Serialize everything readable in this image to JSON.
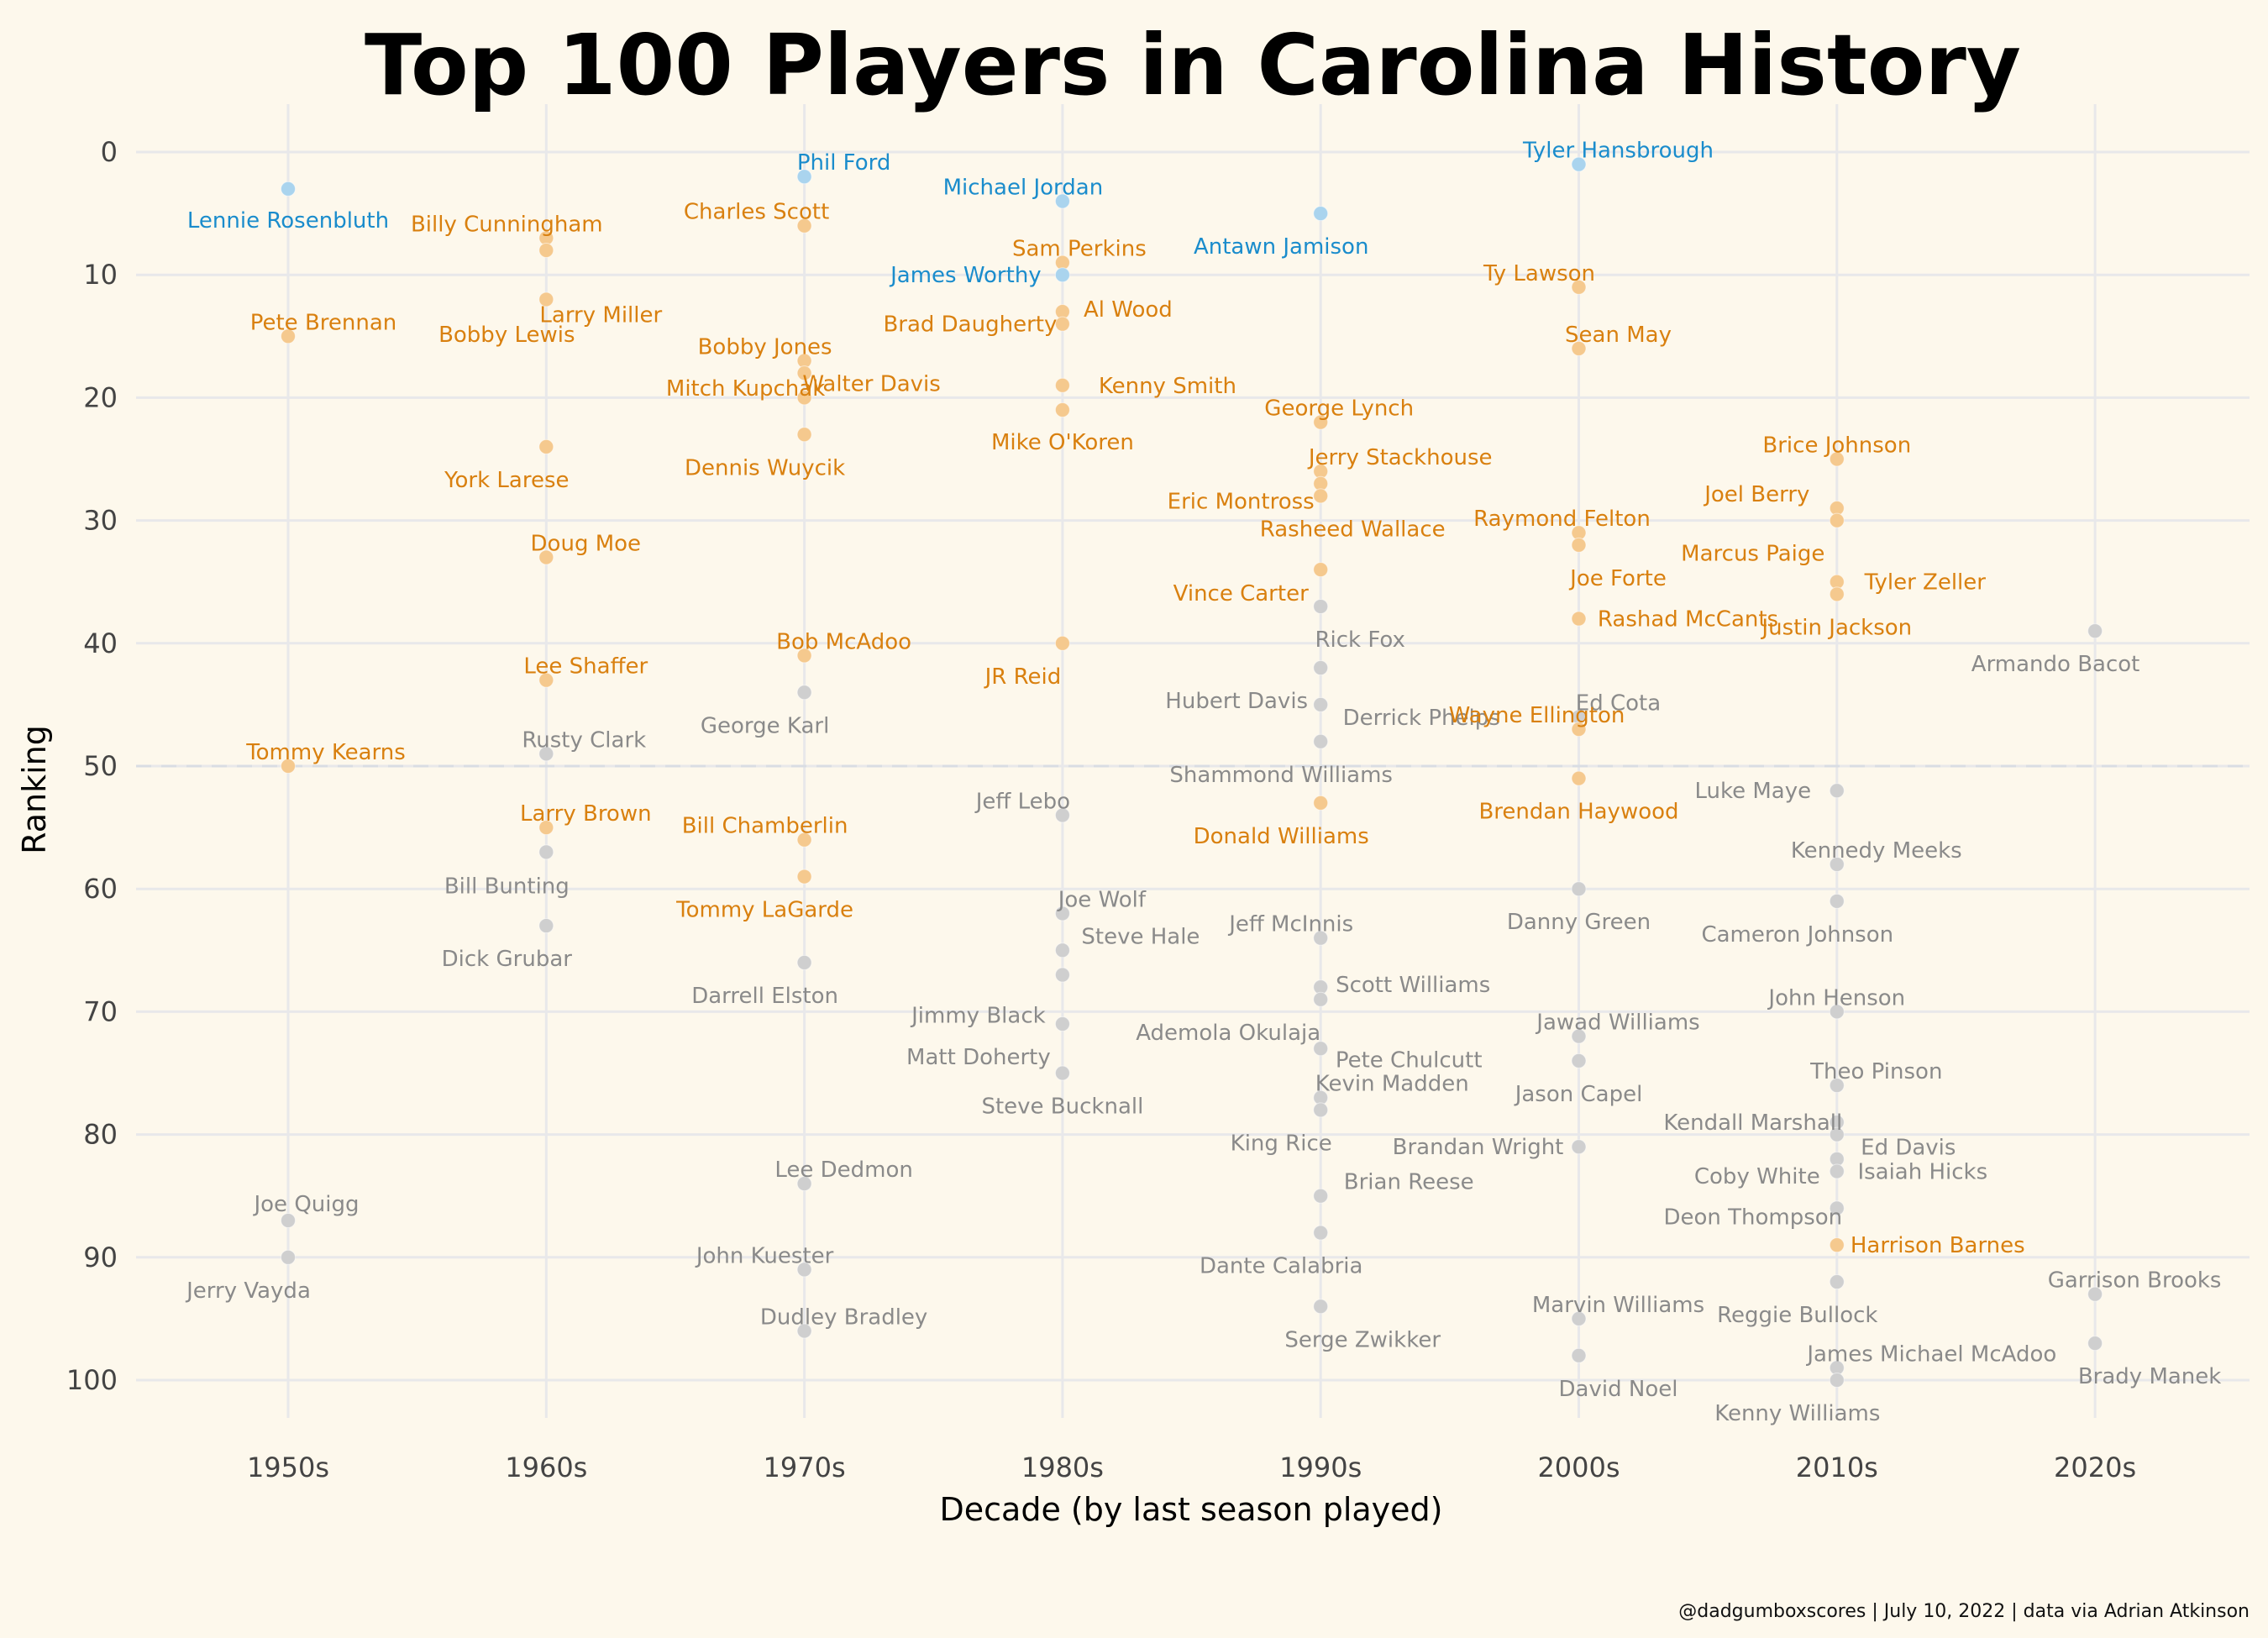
{
  "chart_data": {
    "type": "scatter",
    "title": "Top 100 Players in Carolina History",
    "xlabel": "Decade (by last season played)",
    "ylabel": "Ranking",
    "caption": "@dadgumboxscores | July 10, 2022 | data via Adrian Atkinson",
    "x_categories": [
      "1950s",
      "1960s",
      "1970s",
      "1980s",
      "1990s",
      "2000s",
      "2010s",
      "2020s"
    ],
    "y_ticks": [
      0,
      10,
      20,
      30,
      40,
      50,
      60,
      70,
      80,
      90,
      100
    ],
    "ylim": [
      0,
      100
    ],
    "y_reversed": true,
    "reference_line": 50,
    "grid": true,
    "colors": {
      "blue": "#1a8ccc",
      "orange": "#d9800f",
      "gray": "#8a8a8a",
      "blue_point": "#aad4ee",
      "orange_point": "#f5c98e",
      "gray_point": "#cfcfcf"
    },
    "players": [
      {
        "name": "Lennie Rosenbluth",
        "decade": "1950s",
        "rank": 3,
        "tier": "blue"
      },
      {
        "name": "Pete Brennan",
        "decade": "1950s",
        "rank": 15,
        "tier": "orange"
      },
      {
        "name": "Tommy Kearns",
        "decade": "1950s",
        "rank": 50,
        "tier": "orange"
      },
      {
        "name": "Joe Quigg",
        "decade": "1950s",
        "rank": 87,
        "tier": "gray"
      },
      {
        "name": "Jerry Vayda",
        "decade": "1950s",
        "rank": 90,
        "tier": "gray"
      },
      {
        "name": "Billy Cunningham",
        "decade": "1960s",
        "rank": 7,
        "tier": "orange"
      },
      {
        "name": "Bobby Lewis",
        "decade": "1960s",
        "rank": 8,
        "tier": "orange"
      },
      {
        "name": "Larry Miller",
        "decade": "1960s",
        "rank": 12,
        "tier": "orange"
      },
      {
        "name": "York Larese",
        "decade": "1960s",
        "rank": 24,
        "tier": "orange"
      },
      {
        "name": "Doug Moe",
        "decade": "1960s",
        "rank": 33,
        "tier": "orange"
      },
      {
        "name": "Lee Shaffer",
        "decade": "1960s",
        "rank": 43,
        "tier": "orange"
      },
      {
        "name": "Rusty Clark",
        "decade": "1960s",
        "rank": 49,
        "tier": "gray"
      },
      {
        "name": "Larry Brown",
        "decade": "1960s",
        "rank": 55,
        "tier": "orange"
      },
      {
        "name": "Bill Bunting",
        "decade": "1960s",
        "rank": 57,
        "tier": "gray"
      },
      {
        "name": "Dick Grubar",
        "decade": "1960s",
        "rank": 63,
        "tier": "gray"
      },
      {
        "name": "Phil Ford",
        "decade": "1970s",
        "rank": 2,
        "tier": "blue"
      },
      {
        "name": "Charles Scott",
        "decade": "1970s",
        "rank": 6,
        "tier": "orange"
      },
      {
        "name": "Bobby Jones",
        "decade": "1970s",
        "rank": 17,
        "tier": "orange"
      },
      {
        "name": "Mitch Kupchak",
        "decade": "1970s",
        "rank": 18,
        "tier": "orange"
      },
      {
        "name": "Walter Davis",
        "decade": "1970s",
        "rank": 20,
        "tier": "orange"
      },
      {
        "name": "Dennis Wuycik",
        "decade": "1970s",
        "rank": 23,
        "tier": "orange"
      },
      {
        "name": "Bob McAdoo",
        "decade": "1970s",
        "rank": 41,
        "tier": "orange"
      },
      {
        "name": "George Karl",
        "decade": "1970s",
        "rank": 44,
        "tier": "gray"
      },
      {
        "name": "Bill Chamberlin",
        "decade": "1970s",
        "rank": 56,
        "tier": "orange"
      },
      {
        "name": "Tommy LaGarde",
        "decade": "1970s",
        "rank": 59,
        "tier": "orange"
      },
      {
        "name": "Darrell Elston",
        "decade": "1970s",
        "rank": 66,
        "tier": "gray"
      },
      {
        "name": "Lee Dedmon",
        "decade": "1970s",
        "rank": 84,
        "tier": "gray"
      },
      {
        "name": "John Kuester",
        "decade": "1970s",
        "rank": 91,
        "tier": "gray"
      },
      {
        "name": "Dudley Bradley",
        "decade": "1970s",
        "rank": 96,
        "tier": "gray"
      },
      {
        "name": "Michael Jordan",
        "decade": "1980s",
        "rank": 4,
        "tier": "blue"
      },
      {
        "name": "Sam Perkins",
        "decade": "1980s",
        "rank": 9,
        "tier": "orange"
      },
      {
        "name": "James Worthy",
        "decade": "1980s",
        "rank": 10,
        "tier": "blue"
      },
      {
        "name": "Al Wood",
        "decade": "1980s",
        "rank": 13,
        "tier": "orange"
      },
      {
        "name": "Brad Daugherty",
        "decade": "1980s",
        "rank": 14,
        "tier": "orange"
      },
      {
        "name": "Kenny Smith",
        "decade": "1980s",
        "rank": 19,
        "tier": "orange"
      },
      {
        "name": "Mike O'Koren",
        "decade": "1980s",
        "rank": 21,
        "tier": "orange"
      },
      {
        "name": "JR Reid",
        "decade": "1980s",
        "rank": 40,
        "tier": "orange"
      },
      {
        "name": "Jeff Lebo",
        "decade": "1980s",
        "rank": 54,
        "tier": "gray"
      },
      {
        "name": "Joe Wolf",
        "decade": "1980s",
        "rank": 62,
        "tier": "gray"
      },
      {
        "name": "Steve Hale",
        "decade": "1980s",
        "rank": 65,
        "tier": "gray"
      },
      {
        "name": "Jimmy Black",
        "decade": "1980s",
        "rank": 67,
        "tier": "gray"
      },
      {
        "name": "Matt Doherty",
        "decade": "1980s",
        "rank": 71,
        "tier": "gray"
      },
      {
        "name": "Steve Bucknall",
        "decade": "1980s",
        "rank": 75,
        "tier": "gray"
      },
      {
        "name": "Antawn Jamison",
        "decade": "1990s",
        "rank": 5,
        "tier": "blue"
      },
      {
        "name": "George Lynch",
        "decade": "1990s",
        "rank": 22,
        "tier": "orange"
      },
      {
        "name": "Jerry Stackhouse",
        "decade": "1990s",
        "rank": 26,
        "tier": "orange"
      },
      {
        "name": "Eric Montross",
        "decade": "1990s",
        "rank": 27,
        "tier": "orange"
      },
      {
        "name": "Rasheed Wallace",
        "decade": "1990s",
        "rank": 28,
        "tier": "orange"
      },
      {
        "name": "Vince Carter",
        "decade": "1990s",
        "rank": 34,
        "tier": "orange"
      },
      {
        "name": "Rick Fox",
        "decade": "1990s",
        "rank": 37,
        "tier": "gray"
      },
      {
        "name": "Hubert Davis",
        "decade": "1990s",
        "rank": 42,
        "tier": "gray"
      },
      {
        "name": "Derrick Phelps",
        "decade": "1990s",
        "rank": 45,
        "tier": "gray"
      },
      {
        "name": "Shammond Williams",
        "decade": "1990s",
        "rank": 48,
        "tier": "gray"
      },
      {
        "name": "Donald Williams",
        "decade": "1990s",
        "rank": 53,
        "tier": "orange"
      },
      {
        "name": "Jeff McInnis",
        "decade": "1990s",
        "rank": 64,
        "tier": "gray"
      },
      {
        "name": "Scott Williams",
        "decade": "1990s",
        "rank": 68,
        "tier": "gray"
      },
      {
        "name": "Ademola Okulaja",
        "decade": "1990s",
        "rank": 69,
        "tier": "gray"
      },
      {
        "name": "Pete Chulcutt",
        "decade": "1990s",
        "rank": 73,
        "tier": "gray"
      },
      {
        "name": "Kevin Madden",
        "decade": "1990s",
        "rank": 77,
        "tier": "gray"
      },
      {
        "name": "King Rice",
        "decade": "1990s",
        "rank": 78,
        "tier": "gray"
      },
      {
        "name": "Brian Reese",
        "decade": "1990s",
        "rank": 85,
        "tier": "gray"
      },
      {
        "name": "Dante Calabria",
        "decade": "1990s",
        "rank": 88,
        "tier": "gray"
      },
      {
        "name": "Serge Zwikker",
        "decade": "1990s",
        "rank": 94,
        "tier": "gray"
      },
      {
        "name": "Tyler Hansbrough",
        "decade": "2000s",
        "rank": 1,
        "tier": "blue"
      },
      {
        "name": "Ty Lawson",
        "decade": "2000s",
        "rank": 11,
        "tier": "orange"
      },
      {
        "name": "Sean May",
        "decade": "2000s",
        "rank": 16,
        "tier": "orange"
      },
      {
        "name": "Raymond Felton",
        "decade": "2000s",
        "rank": 31,
        "tier": "orange"
      },
      {
        "name": "Joe Forte",
        "decade": "2000s",
        "rank": 32,
        "tier": "orange"
      },
      {
        "name": "Rashad McCants",
        "decade": "2000s",
        "rank": 38,
        "tier": "orange"
      },
      {
        "name": "Ed Cota",
        "decade": "2000s",
        "rank": 46,
        "tier": "gray"
      },
      {
        "name": "Wayne Ellington",
        "decade": "2000s",
        "rank": 47,
        "tier": "orange"
      },
      {
        "name": "Brendan Haywood",
        "decade": "2000s",
        "rank": 51,
        "tier": "orange"
      },
      {
        "name": "Danny Green",
        "decade": "2000s",
        "rank": 60,
        "tier": "gray"
      },
      {
        "name": "Jawad Williams",
        "decade": "2000s",
        "rank": 72,
        "tier": "gray"
      },
      {
        "name": "Jason Capel",
        "decade": "2000s",
        "rank": 74,
        "tier": "gray"
      },
      {
        "name": "Brandan Wright",
        "decade": "2000s",
        "rank": 81,
        "tier": "gray"
      },
      {
        "name": "Marvin Williams",
        "decade": "2000s",
        "rank": 95,
        "tier": "gray"
      },
      {
        "name": "David Noel",
        "decade": "2000s",
        "rank": 98,
        "tier": "gray"
      },
      {
        "name": "Brice Johnson",
        "decade": "2010s",
        "rank": 25,
        "tier": "orange"
      },
      {
        "name": "Joel Berry",
        "decade": "2010s",
        "rank": 29,
        "tier": "orange"
      },
      {
        "name": "Marcus Paige",
        "decade": "2010s",
        "rank": 30,
        "tier": "orange"
      },
      {
        "name": "Tyler Zeller",
        "decade": "2010s",
        "rank": 35,
        "tier": "orange"
      },
      {
        "name": "Justin Jackson",
        "decade": "2010s",
        "rank": 36,
        "tier": "orange"
      },
      {
        "name": "Luke Maye",
        "decade": "2010s",
        "rank": 52,
        "tier": "gray"
      },
      {
        "name": "Kennedy Meeks",
        "decade": "2010s",
        "rank": 58,
        "tier": "gray"
      },
      {
        "name": "Cameron Johnson",
        "decade": "2010s",
        "rank": 61,
        "tier": "gray"
      },
      {
        "name": "John Henson",
        "decade": "2010s",
        "rank": 70,
        "tier": "gray"
      },
      {
        "name": "Theo Pinson",
        "decade": "2010s",
        "rank": 76,
        "tier": "gray"
      },
      {
        "name": "Kendall Marshall",
        "decade": "2010s",
        "rank": 79,
        "tier": "gray"
      },
      {
        "name": "Ed Davis",
        "decade": "2010s",
        "rank": 80,
        "tier": "gray"
      },
      {
        "name": "Coby White",
        "decade": "2010s",
        "rank": 82,
        "tier": "gray"
      },
      {
        "name": "Isaiah Hicks",
        "decade": "2010s",
        "rank": 83,
        "tier": "gray"
      },
      {
        "name": "Deon Thompson",
        "decade": "2010s",
        "rank": 86,
        "tier": "gray"
      },
      {
        "name": "Harrison Barnes",
        "decade": "2010s",
        "rank": 89,
        "tier": "orange"
      },
      {
        "name": "Reggie Bullock",
        "decade": "2010s",
        "rank": 92,
        "tier": "gray"
      },
      {
        "name": "James Michael McAdoo",
        "decade": "2010s",
        "rank": 99,
        "tier": "gray"
      },
      {
        "name": "Kenny Williams",
        "decade": "2010s",
        "rank": 100,
        "tier": "gray"
      },
      {
        "name": "Armando Bacot",
        "decade": "2020s",
        "rank": 39,
        "tier": "gray"
      },
      {
        "name": "Garrison Brooks",
        "decade": "2020s",
        "rank": 93,
        "tier": "gray"
      },
      {
        "name": "Brady Manek",
        "decade": "2020s",
        "rank": 97,
        "tier": "gray"
      }
    ]
  }
}
